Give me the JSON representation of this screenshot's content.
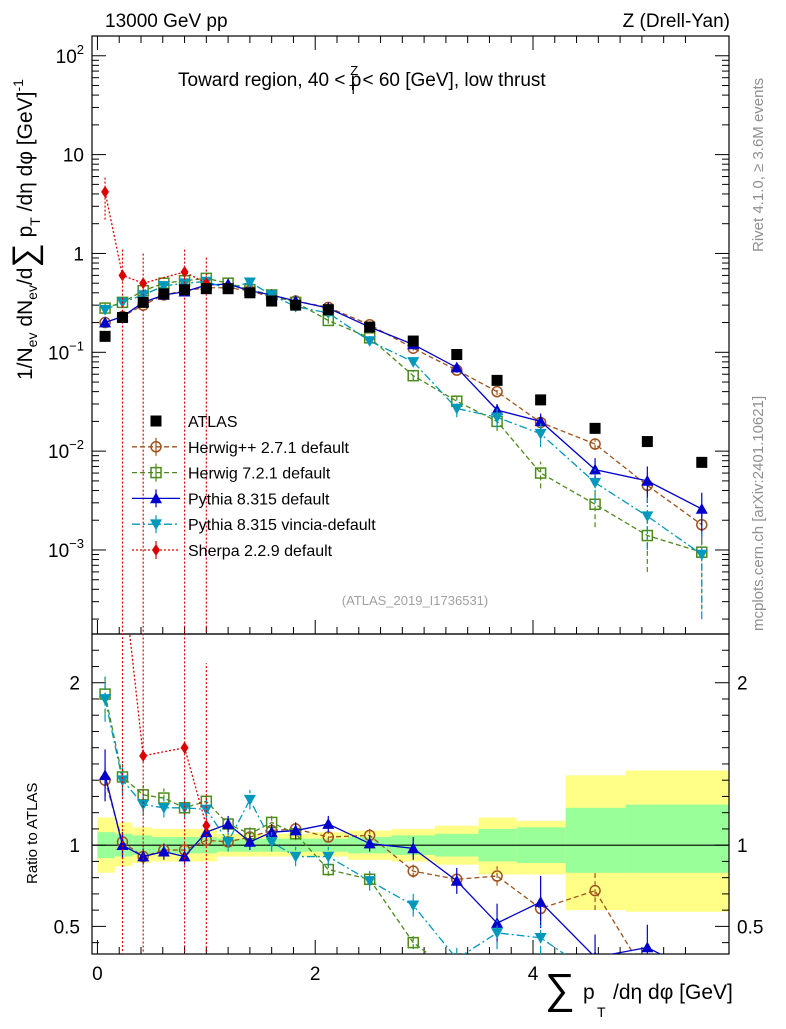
{
  "chart_data": {
    "type": "scatter",
    "header": {
      "left": "13000 GeV pp",
      "right": "Z (Drell-Yan)"
    },
    "title_parts": {
      "prefix": "Toward region, 40 < p",
      "sup": "Z",
      "sub": "T",
      "suffix": " < 60 [GeV], low thrust"
    },
    "ylabel_main": "1/N_ev dN_ev/d∑p_T/dη dφ [GeV]^-1",
    "ylabel_ratio": "Ratio to ATLAS",
    "xlabel": "∑p_T/dη dφ [GeV]",
    "side_text_top": "Rivet 4.1.0, ≥ 3.6M events",
    "side_text_bottom": "mcplots.cern.ch [arXiv:2401.10621]",
    "watermark": "(ATLAS_2019_I1736531)",
    "xlim": [
      -0.05,
      5.8
    ],
    "ylim_main_log10": [
      -3.85,
      2.2
    ],
    "ylim_ratio": [
      0.33,
      2.3
    ],
    "x_ticks": [
      "0",
      "2",
      "4"
    ],
    "y_ticks_main": [
      {
        "v": 100,
        "base": "10",
        "exp": "2"
      },
      {
        "v": 10,
        "base": "10",
        "exp": ""
      },
      {
        "v": 1,
        "base": "1",
        "exp": ""
      },
      {
        "v": 0.1,
        "base": "10",
        "exp": "−1"
      },
      {
        "v": 0.01,
        "base": "10",
        "exp": "−2"
      },
      {
        "v": 0.001,
        "base": "10",
        "exp": "−3"
      }
    ],
    "y_ticks_ratio": [
      "0.5",
      "1",
      "2"
    ],
    "y_ticks_ratio_right": [
      "0.5",
      "1",
      "2"
    ],
    "bands": [
      {
        "x0": 0.0,
        "x1": 0.16,
        "g": [
          0.92,
          1.08
        ],
        "y": [
          0.83,
          1.17
        ]
      },
      {
        "x0": 0.16,
        "x1": 0.32,
        "g": [
          0.93,
          1.07
        ],
        "y": [
          0.87,
          1.14
        ]
      },
      {
        "x0": 0.32,
        "x1": 0.5,
        "g": [
          0.94,
          1.06
        ],
        "y": [
          0.89,
          1.11
        ]
      },
      {
        "x0": 0.5,
        "x1": 0.7,
        "g": [
          0.95,
          1.05
        ],
        "y": [
          0.9,
          1.1
        ]
      },
      {
        "x0": 0.7,
        "x1": 0.9,
        "g": [
          0.95,
          1.05
        ],
        "y": [
          0.9,
          1.1
        ]
      },
      {
        "x0": 0.9,
        "x1": 1.1,
        "g": [
          0.95,
          1.05
        ],
        "y": [
          0.9,
          1.1
        ]
      },
      {
        "x0": 1.1,
        "x1": 1.3,
        "g": [
          0.96,
          1.04
        ],
        "y": [
          0.93,
          1.07
        ]
      },
      {
        "x0": 1.3,
        "x1": 1.5,
        "g": [
          0.96,
          1.04
        ],
        "y": [
          0.93,
          1.07
        ]
      },
      {
        "x0": 1.5,
        "x1": 1.7,
        "g": [
          0.96,
          1.04
        ],
        "y": [
          0.93,
          1.07
        ]
      },
      {
        "x0": 1.7,
        "x1": 1.95,
        "g": [
          0.96,
          1.04
        ],
        "y": [
          0.93,
          1.07
        ]
      },
      {
        "x0": 1.95,
        "x1": 2.3,
        "g": [
          0.96,
          1.04
        ],
        "y": [
          0.93,
          1.08
        ]
      },
      {
        "x0": 2.3,
        "x1": 2.7,
        "g": [
          0.95,
          1.05
        ],
        "y": [
          0.91,
          1.09
        ]
      },
      {
        "x0": 2.7,
        "x1": 3.1,
        "g": [
          0.94,
          1.06
        ],
        "y": [
          0.9,
          1.1
        ]
      },
      {
        "x0": 3.1,
        "x1": 3.5,
        "g": [
          0.93,
          1.07
        ],
        "y": [
          0.88,
          1.12
        ]
      },
      {
        "x0": 3.5,
        "x1": 3.85,
        "g": [
          0.9,
          1.1
        ],
        "y": [
          0.82,
          1.17
        ]
      },
      {
        "x0": 3.85,
        "x1": 4.3,
        "g": [
          0.89,
          1.11
        ],
        "y": [
          0.82,
          1.15
        ]
      },
      {
        "x0": 4.3,
        "x1": 4.85,
        "g": [
          0.83,
          1.23
        ],
        "y": [
          0.6,
          1.43
        ]
      },
      {
        "x0": 4.85,
        "x1": 5.8,
        "g": [
          0.83,
          1.25
        ],
        "y": [
          0.59,
          1.46
        ]
      }
    ],
    "data": {
      "name": "ATLAS",
      "x": [
        0.07,
        0.23,
        0.42,
        0.61,
        0.8,
        1.0,
        1.2,
        1.4,
        1.6,
        1.82,
        2.12,
        2.5,
        2.9,
        3.3,
        3.67,
        4.07,
        4.57,
        5.05,
        5.55
      ],
      "y": [
        0.145,
        0.225,
        0.32,
        0.39,
        0.43,
        0.44,
        0.44,
        0.4,
        0.33,
        0.3,
        0.27,
        0.18,
        0.13,
        0.095,
        0.052,
        0.033,
        0.017,
        0.0125,
        0.0077
      ]
    },
    "series": [
      {
        "name": "Herwig++ 2.7.1 default",
        "color": "#a0521d",
        "marker": "circle",
        "dash": "5,3",
        "x": [
          0.07,
          0.23,
          0.42,
          0.61,
          0.8,
          1.0,
          1.2,
          1.4,
          1.6,
          1.82,
          2.12,
          2.5,
          2.9,
          3.3,
          3.67,
          4.07,
          4.57,
          5.05,
          5.55
        ],
        "y": [
          0.2,
          0.23,
          0.3,
          0.38,
          0.42,
          0.45,
          0.45,
          0.42,
          0.36,
          0.33,
          0.285,
          0.19,
          0.11,
          0.066,
          0.04,
          0.0195,
          0.0118,
          0.0045,
          0.0018
        ],
        "err": [
          0.02,
          0.02,
          0.02,
          0.02,
          0.02,
          0.02,
          0.02,
          0.02,
          0.015,
          0.015,
          0.01,
          0.01,
          0.006,
          0.004,
          0.003,
          0.0015,
          0.0015,
          0.0008,
          0.0006
        ],
        "ratio": [
          1.4,
          1.02,
          0.93,
          0.97,
          0.97,
          1.03,
          1.02,
          1.05,
          1.09,
          1.1,
          1.05,
          1.06,
          0.84,
          0.79,
          0.81,
          0.61,
          0.72,
          0.19,
          0.0
        ],
        "ratio_err": [
          0.1,
          0.06,
          0.04,
          0.04,
          0.04,
          0.03,
          0.03,
          0.03,
          0.04,
          0.04,
          0.03,
          0.04,
          0.04,
          0.05,
          0.06,
          0.08,
          0.12,
          0.1,
          0.1
        ]
      },
      {
        "name": "Herwig 7.2.1 default",
        "color": "#4d8a1c",
        "marker": "square",
        "dash": "5,3",
        "x": [
          0.07,
          0.23,
          0.42,
          0.61,
          0.8,
          1.0,
          1.2,
          1.4,
          1.6,
          1.82,
          2.12,
          2.5,
          2.9,
          3.3,
          3.67,
          4.07,
          4.57,
          5.05,
          5.55
        ],
        "y": [
          0.28,
          0.32,
          0.42,
          0.5,
          0.53,
          0.56,
          0.5,
          0.43,
          0.38,
          0.32,
          0.21,
          0.14,
          0.058,
          0.032,
          0.02,
          0.006,
          0.0029,
          0.0014,
          0.00095
        ],
        "err": [
          0.03,
          0.03,
          0.03,
          0.03,
          0.03,
          0.03,
          0.03,
          0.02,
          0.02,
          0.02,
          0.015,
          0.01,
          0.006,
          0.005,
          0.004,
          0.0018,
          0.0012,
          0.0008,
          0.0007
        ],
        "ratio": [
          1.93,
          1.42,
          1.31,
          1.29,
          1.23,
          1.27,
          1.13,
          1.07,
          1.14,
          1.07,
          0.85,
          0.79,
          0.4,
          0.2,
          0.1,
          0.0,
          0.0,
          0.0,
          0.0
        ],
        "ratio_err": [
          0.12,
          0.08,
          0.06,
          0.06,
          0.05,
          0.05,
          0.04,
          0.04,
          0.04,
          0.04,
          0.04,
          0.04,
          0.04,
          0.05,
          0.05,
          0.05,
          0.05,
          0.05,
          0.05
        ]
      },
      {
        "name": "Pythia 8.315 default",
        "color": "#0000cc",
        "marker": "triangle-up",
        "dash": "",
        "x": [
          0.07,
          0.23,
          0.42,
          0.61,
          0.8,
          1.0,
          1.2,
          1.4,
          1.6,
          1.82,
          2.12,
          2.5,
          2.9,
          3.3,
          3.67,
          4.07,
          4.57,
          5.05,
          5.55
        ],
        "y": [
          0.2,
          0.23,
          0.32,
          0.38,
          0.41,
          0.48,
          0.49,
          0.42,
          0.38,
          0.33,
          0.28,
          0.18,
          0.12,
          0.07,
          0.026,
          0.02,
          0.0065,
          0.005,
          0.0026
        ],
        "err": [
          0.02,
          0.02,
          0.02,
          0.02,
          0.02,
          0.02,
          0.02,
          0.02,
          0.02,
          0.015,
          0.015,
          0.01,
          0.008,
          0.005,
          0.004,
          0.004,
          0.002,
          0.002,
          0.0012
        ],
        "ratio": [
          1.43,
          1.0,
          0.93,
          0.96,
          0.93,
          1.08,
          1.13,
          1.02,
          1.08,
          1.09,
          1.13,
          1.01,
          0.98,
          0.78,
          0.52,
          0.65,
          0.31,
          0.37,
          0.2
        ],
        "ratio_err": [
          0.16,
          0.08,
          0.05,
          0.05,
          0.05,
          0.05,
          0.05,
          0.05,
          0.05,
          0.05,
          0.05,
          0.05,
          0.07,
          0.08,
          0.12,
          0.16,
          0.14,
          0.14,
          0.12
        ]
      },
      {
        "name": "Pythia 8.315 vincia-default",
        "color": "#0099bb",
        "marker": "triangle-down",
        "dash": "8,3,2,3",
        "x": [
          0.07,
          0.23,
          0.42,
          0.61,
          0.8,
          1.0,
          1.2,
          1.4,
          1.6,
          1.82,
          2.12,
          2.5,
          2.9,
          3.3,
          3.67,
          4.07,
          4.57,
          5.05,
          5.55
        ],
        "y": [
          0.27,
          0.32,
          0.38,
          0.47,
          0.5,
          0.52,
          0.44,
          0.51,
          0.38,
          0.29,
          0.25,
          0.13,
          0.08,
          0.027,
          0.022,
          0.015,
          0.0048,
          0.0022,
          0.0009
        ],
        "err": [
          0.03,
          0.03,
          0.03,
          0.03,
          0.03,
          0.03,
          0.03,
          0.03,
          0.02,
          0.02,
          0.015,
          0.01,
          0.008,
          0.005,
          0.005,
          0.004,
          0.0018,
          0.0012,
          0.0007
        ],
        "ratio": [
          1.9,
          1.4,
          1.25,
          1.23,
          1.23,
          1.22,
          1.02,
          1.28,
          1.02,
          0.93,
          0.93,
          0.78,
          0.63,
          0.3,
          0.46,
          0.43,
          0.2,
          0.15,
          0.1
        ],
        "ratio_err": [
          0.14,
          0.1,
          0.07,
          0.06,
          0.06,
          0.06,
          0.06,
          0.06,
          0.06,
          0.06,
          0.06,
          0.06,
          0.07,
          0.08,
          0.1,
          0.1,
          0.1,
          0.1,
          0.1
        ]
      },
      {
        "name": "Sherpa 2.2.9 default",
        "color": "#dd0000",
        "marker": "diamond",
        "dash": "2,2",
        "x": [
          0.07,
          0.23,
          0.42,
          0.8,
          1.0
        ],
        "y": [
          4.2,
          0.6,
          0.5,
          0.65,
          0.5
        ],
        "err_lo": [
          2.0,
          0.6,
          0.5,
          0.65,
          0.5
        ],
        "err_hi": [
          1.8,
          0.5,
          0.5,
          0.5,
          0.45
        ],
        "ratio": [
          28.0,
          2.7,
          1.55,
          1.6,
          1.12
        ],
        "ratio_err": [
          10.0,
          2.5,
          1.5,
          1.5,
          1.0
        ]
      }
    ]
  }
}
